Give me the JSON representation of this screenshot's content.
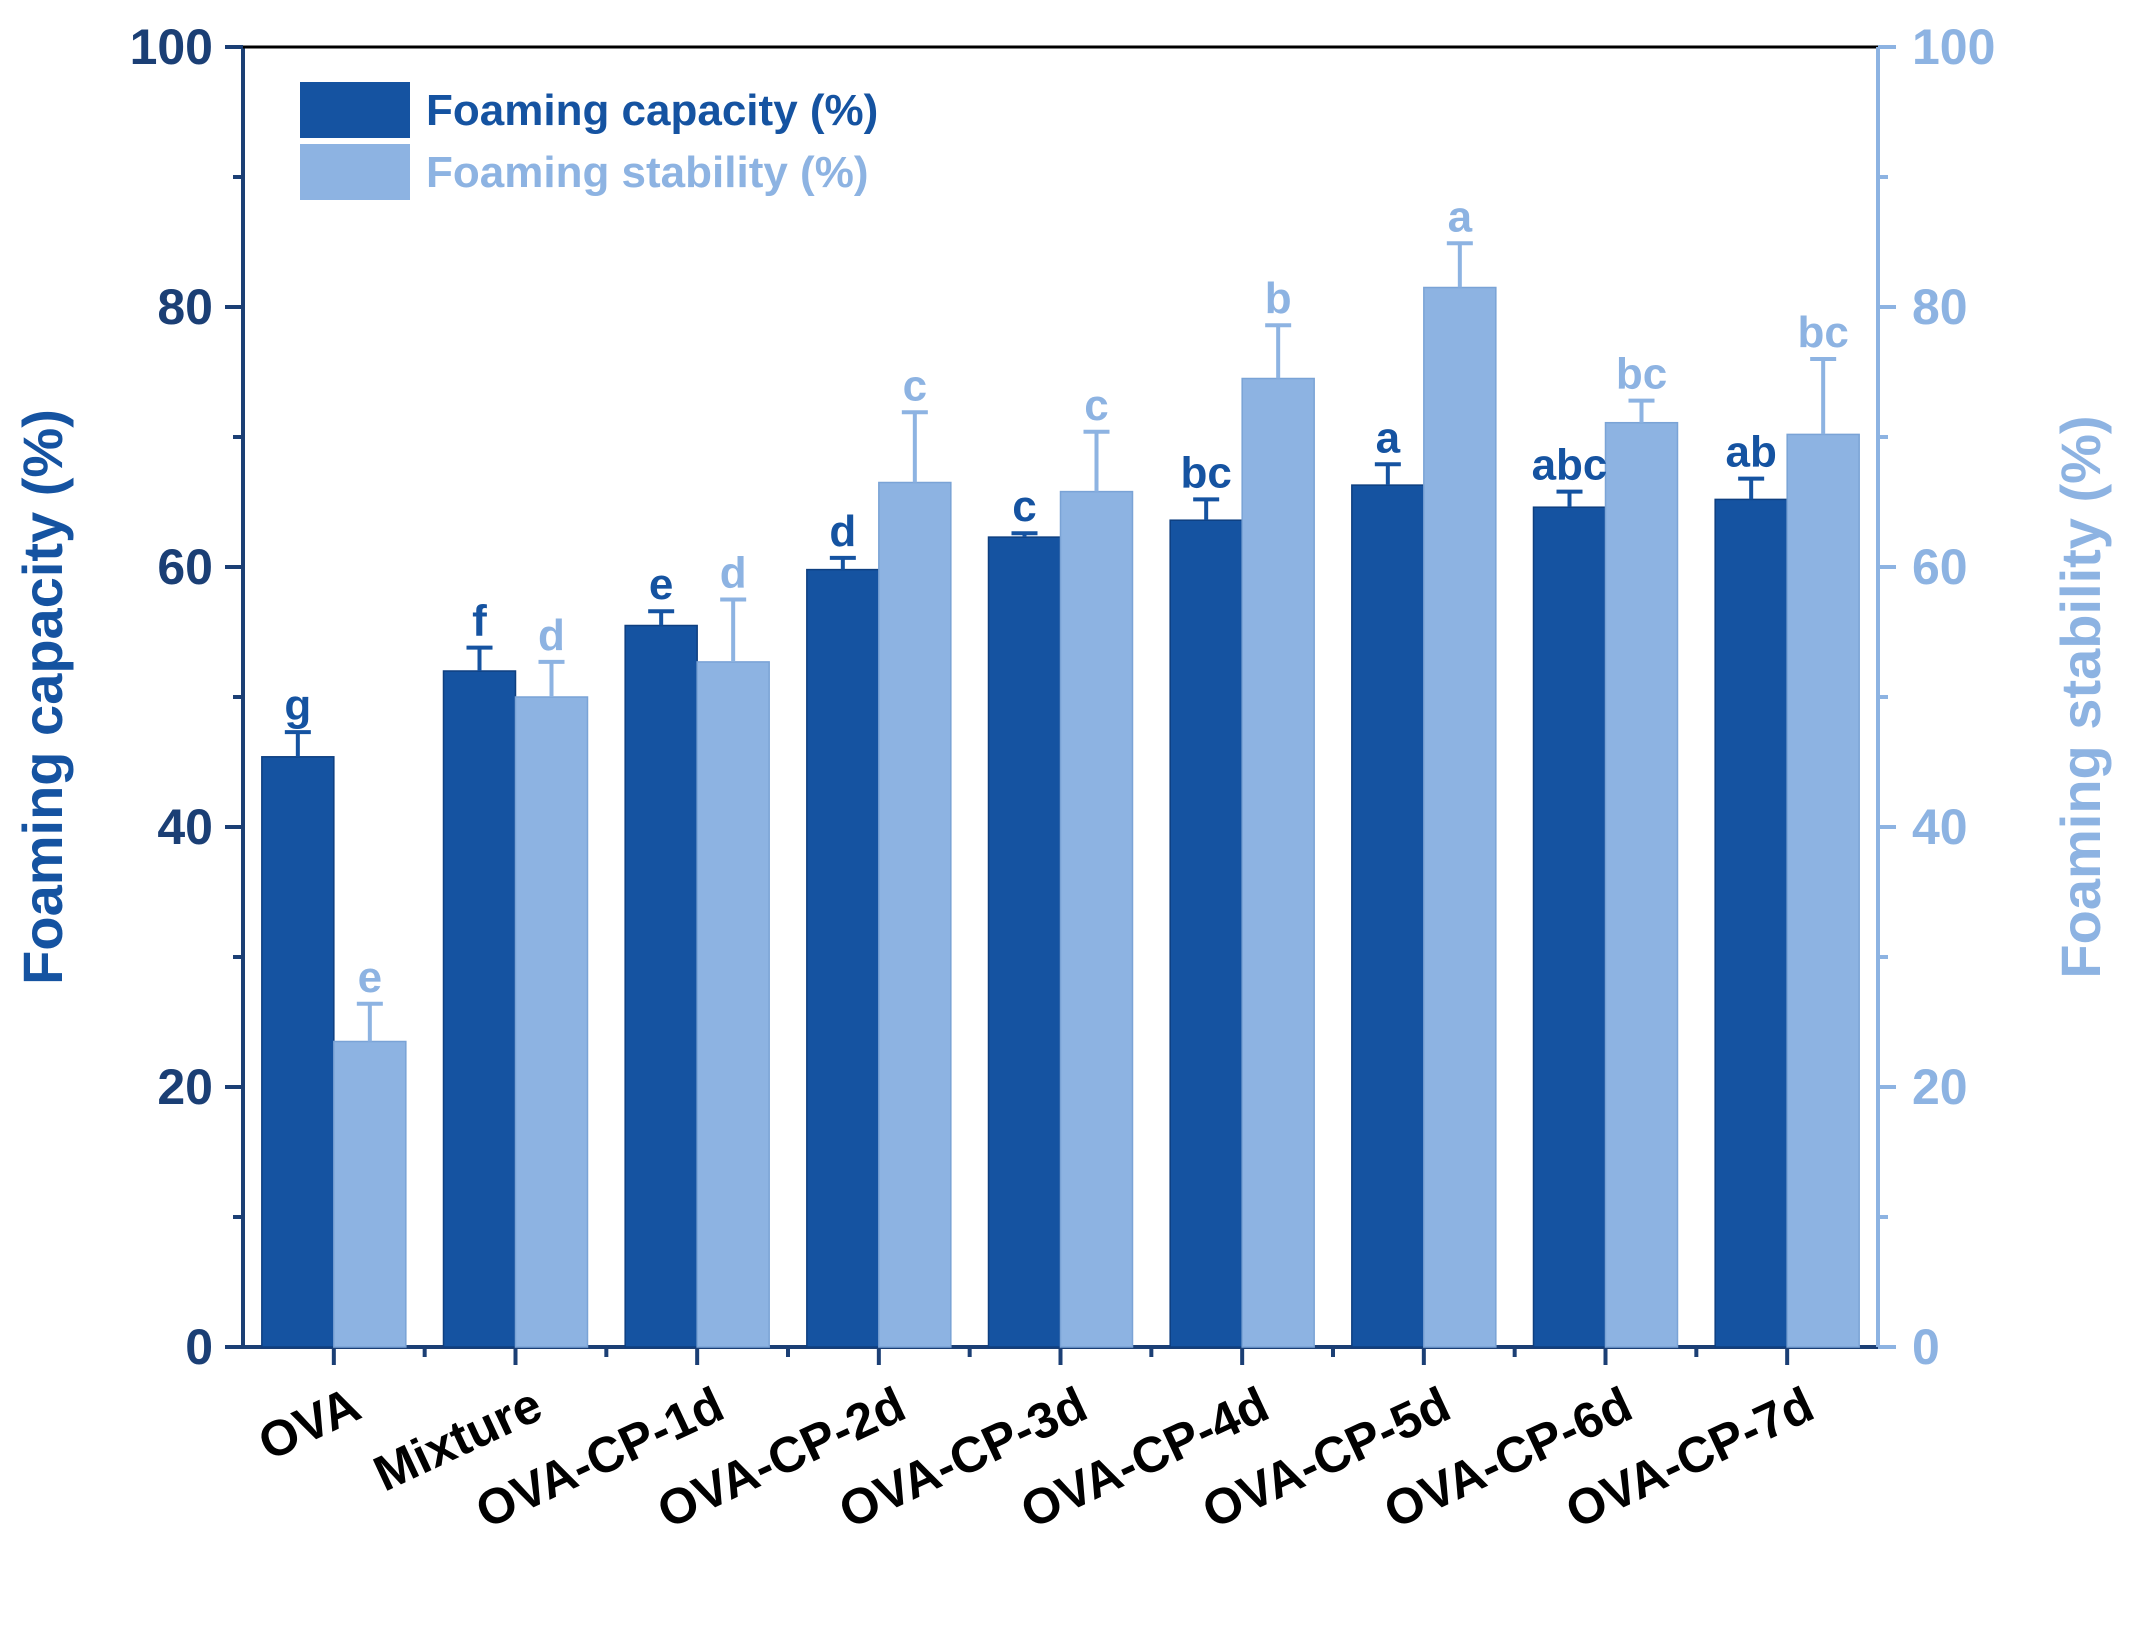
{
  "chart_data": {
    "type": "bar",
    "categories": [
      "OVA",
      "Mixture",
      "OVA-CP-1d",
      "OVA-CP-2d",
      "OVA-CP-3d",
      "OVA-CP-4d",
      "OVA-CP-5d",
      "OVA-CP-6d",
      "OVA-CP-7d"
    ],
    "series": [
      {
        "name": "Foaming capacity (%)",
        "axis": "left",
        "color": "#1553a1",
        "values": [
          45.4,
          52.0,
          55.5,
          59.8,
          62.3,
          63.6,
          66.3,
          64.6,
          65.2
        ],
        "errors": [
          1.9,
          1.8,
          1.1,
          0.9,
          0.3,
          1.6,
          1.6,
          1.2,
          1.6
        ],
        "letters": [
          "g",
          "f",
          "e",
          "d",
          "c",
          "bc",
          "a",
          "abc",
          "ab"
        ]
      },
      {
        "name": "Foaming stability (%)",
        "axis": "right",
        "color": "#8db3e2",
        "values": [
          23.5,
          50.0,
          52.7,
          66.5,
          65.8,
          74.5,
          81.5,
          71.1,
          70.2
        ],
        "errors": [
          2.9,
          2.7,
          4.8,
          5.4,
          4.6,
          4.1,
          3.4,
          1.7,
          5.8
        ],
        "letters": [
          "e",
          "d",
          "d",
          "c",
          "c",
          "b",
          "a",
          "bc",
          "bc"
        ]
      }
    ],
    "ylabel": "Foaming capacity (%)",
    "y2label": "Foaming stability (%)",
    "ylim": [
      0,
      100
    ],
    "y2lim": [
      0,
      100
    ],
    "yticks": [
      "0",
      "20",
      "40",
      "60",
      "80",
      "100"
    ],
    "legend_position": "top-left"
  },
  "colors": {
    "primary": "#1553a1",
    "secondary": "#8db3e2",
    "axis_left": "#1b3f75",
    "axis_right": "#8db3e2"
  }
}
